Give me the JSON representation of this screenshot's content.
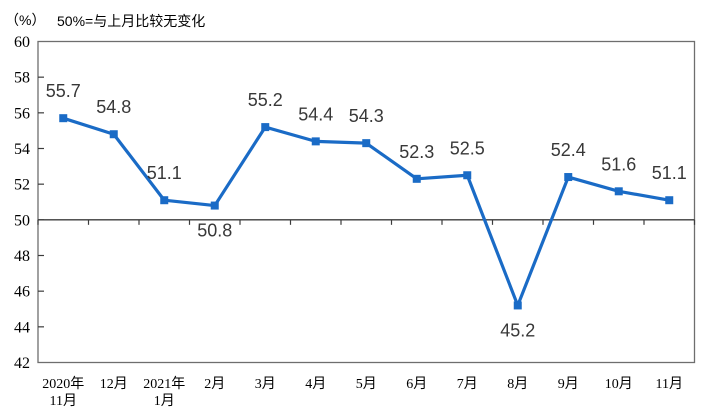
{
  "header": {
    "unit_label": "（%）",
    "subtitle": "50%=与上月比较无变化"
  },
  "chart_data": {
    "type": "line",
    "title": "50%=与上月比较无变化",
    "y_axis_unit": "（%）",
    "categories": [
      [
        "2020年",
        "11月"
      ],
      [
        "12月"
      ],
      [
        "2021年",
        "1月"
      ],
      [
        "2月"
      ],
      [
        "3月"
      ],
      [
        "4月"
      ],
      [
        "5月"
      ],
      [
        "6月"
      ],
      [
        "7月"
      ],
      [
        "8月"
      ],
      [
        "9月"
      ],
      [
        "10月"
      ],
      [
        "11月"
      ]
    ],
    "values": [
      55.7,
      54.8,
      51.1,
      50.8,
      55.2,
      54.4,
      54.3,
      52.3,
      52.5,
      45.2,
      52.4,
      51.6,
      51.1
    ],
    "data_label_side": [
      "above",
      "above",
      "above",
      "below",
      "above",
      "above",
      "above",
      "above",
      "above",
      "below",
      "above",
      "above",
      "above"
    ],
    "ylim": [
      42,
      60
    ],
    "ytick_step": 2,
    "baseline_value": 50,
    "grid": "off",
    "legend": "none",
    "colors": {
      "line": "#1a6bc6",
      "axis_border": "#6e6e6e",
      "baseline": "#3c3c3c",
      "tick": "#3c3c3c",
      "axis_text": "#000000",
      "data_label": "#383838",
      "background": "#ffffff"
    }
  }
}
